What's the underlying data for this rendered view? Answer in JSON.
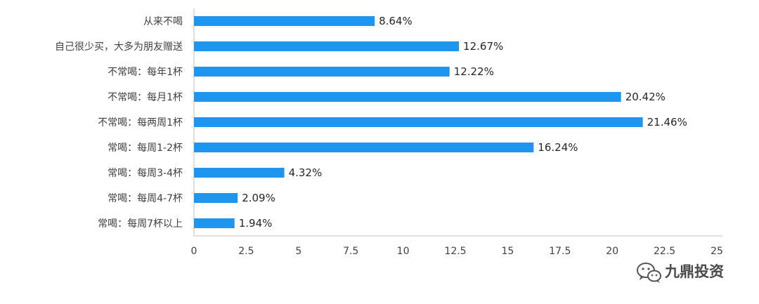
{
  "chart_data": {
    "type": "bar",
    "orientation": "horizontal",
    "categories": [
      "从来不喝",
      "自己很少买，大多为朋友赠送",
      "不常喝：每年1杯",
      "不常喝：每月1杯",
      "不常喝：每两周1杯",
      "常喝：每周1-2杯",
      "常喝：每周3-4杯",
      "常喝：每周4-7杯",
      "常喝：每周7杯以上"
    ],
    "values": [
      8.64,
      12.67,
      12.22,
      20.42,
      21.46,
      16.24,
      4.32,
      2.09,
      1.94
    ],
    "value_labels": [
      "8.64%",
      "12.67%",
      "12.22%",
      "20.42%",
      "21.46%",
      "16.24%",
      "4.32%",
      "2.09%",
      "1.94%"
    ],
    "x_ticks": [
      0,
      2.5,
      5,
      7.5,
      10,
      12.5,
      15,
      17.5,
      20,
      22.5,
      25
    ],
    "x_tick_labels": [
      "0",
      "2.5",
      "5",
      "7.5",
      "10",
      "12.5",
      "15",
      "17.5",
      "20",
      "22.5",
      "25"
    ],
    "xlim": [
      0,
      25
    ],
    "title": "",
    "xlabel": "",
    "ylabel": "",
    "grid": false,
    "bar_color": "#1e96f0",
    "axis_color": "#bfbfbf"
  },
  "watermark": {
    "icon": "wechat-icon",
    "text": "九鼎投资"
  }
}
